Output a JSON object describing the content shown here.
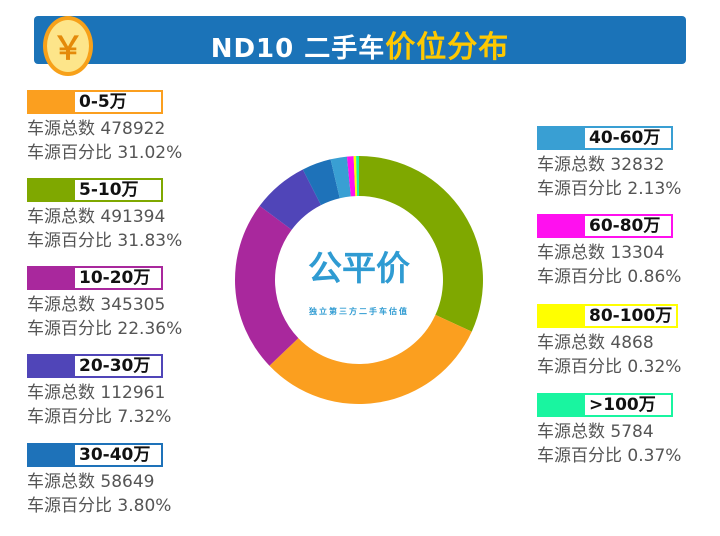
{
  "header": {
    "title_prefix": "ND10 二手车",
    "title_highlight": "价位分布",
    "coin_symbol": "￥"
  },
  "logo": {
    "name": "公平价",
    "tagline": "独立第三方二手车估值"
  },
  "stat_labels": {
    "count": "车源总数",
    "percent": "车源百分比"
  },
  "chart_data": {
    "type": "pie",
    "donut": true,
    "start": "top",
    "direction": "clockwise",
    "slices": [
      {
        "label": "5-10万",
        "count": "491394",
        "percent": 31.83,
        "percent_text": "31.83%",
        "color": "#7fa800"
      },
      {
        "label": "0-5万",
        "count": "478922",
        "percent": 31.02,
        "percent_text": "31.02%",
        "color": "#fb9f1f"
      },
      {
        "label": "10-20万",
        "count": "345305",
        "percent": 22.36,
        "percent_text": "22.36%",
        "color": "#a9289d"
      },
      {
        "label": "20-30万",
        "count": "112961",
        "percent": 7.32,
        "percent_text": "7.32%",
        "color": "#5045b8"
      },
      {
        "label": "30-40万",
        "count": "58649",
        "percent": 3.8,
        "percent_text": "3.80%",
        "color": "#1e72b9"
      },
      {
        "label": "40-60万",
        "count": "32832",
        "percent": 2.13,
        "percent_text": "2.13%",
        "color": "#399fd3"
      },
      {
        "label": "60-80万",
        "count": "13304",
        "percent": 0.86,
        "percent_text": "0.86%",
        "color": "#ff10ef"
      },
      {
        "label": "80-100万",
        "count": "4868",
        "percent": 0.32,
        "percent_text": "0.32%",
        "color": "#ffff00"
      },
      {
        "label": ">100万",
        "count": "5784",
        "percent": 0.37,
        "percent_text": "0.37%",
        "color": "#19f5a0"
      }
    ]
  }
}
